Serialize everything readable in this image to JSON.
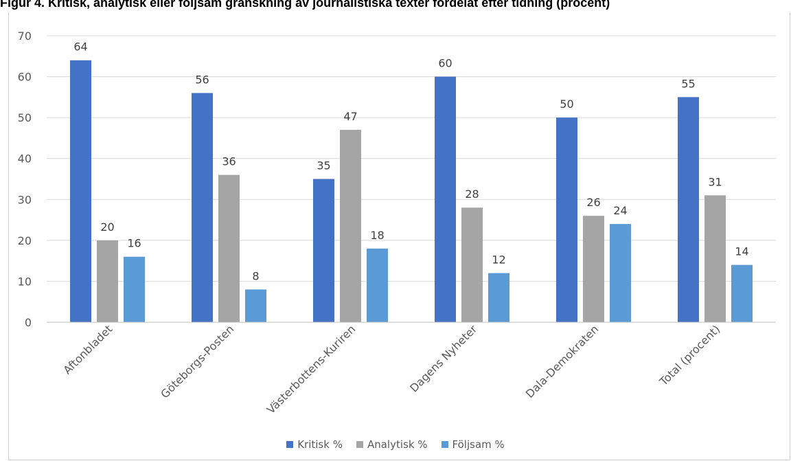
{
  "title": "Figur 4. Kritisk, analytisk eller följsam granskning av journalistiska texter fördelat efter tidning (procent)",
  "chart_data": {
    "type": "bar",
    "categories": [
      "Aftonbladet",
      "Göteborgs-Posten",
      "Västerbottens-Kuriren",
      "Dagens Nyheter",
      "Dala-Demokraten",
      "Total (procent)"
    ],
    "series": [
      {
        "name": "Kritisk %",
        "values": [
          64,
          56,
          35,
          60,
          50,
          55
        ],
        "color": "#4472c4"
      },
      {
        "name": "Analytisk %",
        "values": [
          20,
          36,
          47,
          28,
          26,
          31
        ],
        "color": "#a5a5a5"
      },
      {
        "name": "Följsam %",
        "values": [
          16,
          8,
          18,
          12,
          24,
          14
        ],
        "color": "#5b9bd5"
      }
    ],
    "ylim": [
      0,
      70
    ],
    "yticks": [
      0,
      10,
      20,
      30,
      40,
      50,
      60,
      70
    ],
    "grid": true,
    "legend_position": "bottom",
    "data_labels": true
  }
}
